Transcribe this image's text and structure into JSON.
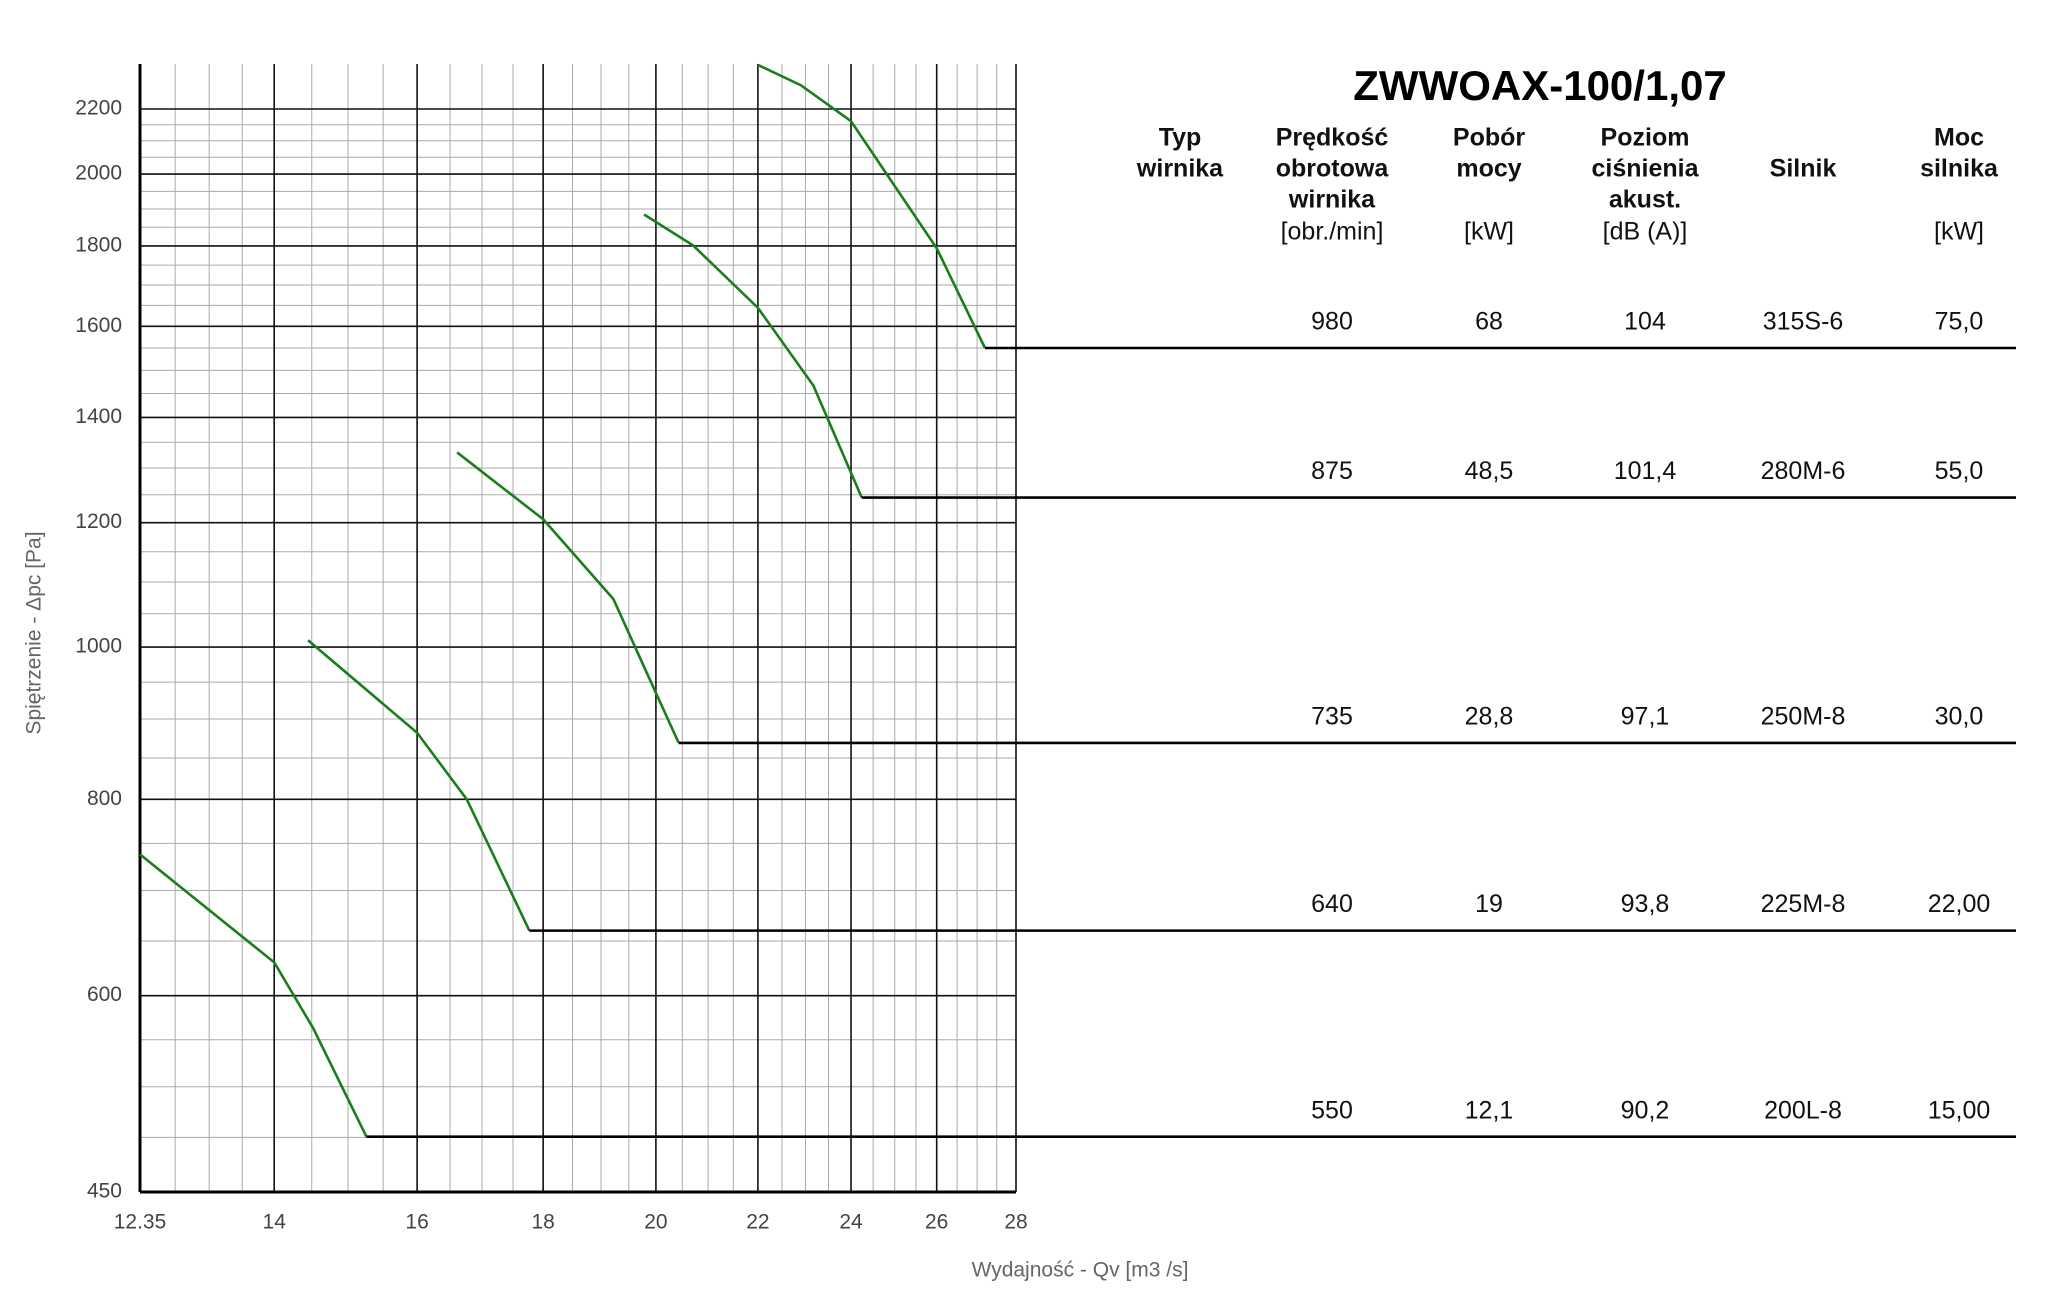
{
  "chart_data": {
    "type": "line",
    "title": "ZWWOAX-100/1,07",
    "x_label": "Wydajność - Qv [m3 /s]",
    "y_label": "Spiętrzenie - Δpc [Pa]",
    "xscale": "log",
    "yscale": "log",
    "grid": true,
    "xlim": [
      12.35,
      28
    ],
    "xticks": [
      12.35,
      14,
      16,
      18,
      20,
      22,
      24,
      26,
      28
    ],
    "ylim": [
      450,
      2350
    ],
    "yticks": [
      450,
      600,
      800,
      1000,
      1200,
      1400,
      1600,
      1800,
      2000,
      2200
    ],
    "series": [
      {
        "color": "#1a7f1a",
        "x": [
          22,
          22.9,
          24,
          26,
          27.2
        ],
        "y": [
          2347,
          2278,
          2161,
          1794,
          1550
        ]
      },
      {
        "color": "#1a7f1a",
        "x": [
          19.78,
          20.71,
          22,
          23.17,
          24.24
        ],
        "y": [
          1885,
          1801,
          1644,
          1467,
          1245
        ]
      },
      {
        "color": "#1a7f1a",
        "x": [
          16.61,
          18,
          19.22,
          20,
          20.43
        ],
        "y": [
          1330,
          1206,
          1073,
          935,
          869
        ]
      },
      {
        "color": "#1a7f1a",
        "x": [
          14.45,
          16,
          16.76,
          17.77
        ],
        "y": [
          1010,
          882,
          800,
          660
        ]
      },
      {
        "color": "#1a7f1a",
        "x": [
          12.35,
          14,
          14.52,
          15.26
        ],
        "y": [
          738,
          630,
          572,
          488
        ]
      }
    ],
    "table": {
      "columns": [
        {
          "lines": [
            "Typ",
            "wirnika"
          ]
        },
        {
          "lines": [
            "Prędkość",
            "obrotowa",
            "wirnika"
          ],
          "unit": "[obr./min]"
        },
        {
          "lines": [
            "Pobór",
            "mocy"
          ],
          "unit": "[kW]"
        },
        {
          "lines": [
            "Poziom",
            "ciśnienia",
            "akust."
          ],
          "unit": "[dB (A)]"
        },
        {
          "lines": [
            "Silnik"
          ]
        },
        {
          "lines": [
            "Moc",
            "silnika"
          ],
          "unit": "[kW]"
        }
      ],
      "rows": [
        [
          "980",
          "68",
          "104",
          "315S-6",
          "75,0"
        ],
        [
          "875",
          "48,5",
          "101,4",
          "280M-6",
          "55,0"
        ],
        [
          "735",
          "28,8",
          "97,1",
          "250M-8",
          "30,0"
        ],
        [
          "640",
          "19",
          "93,8",
          "225M-8",
          "22,00"
        ],
        [
          "550",
          "12,1",
          "90,2",
          "200L-8",
          "15,00"
        ]
      ]
    }
  }
}
